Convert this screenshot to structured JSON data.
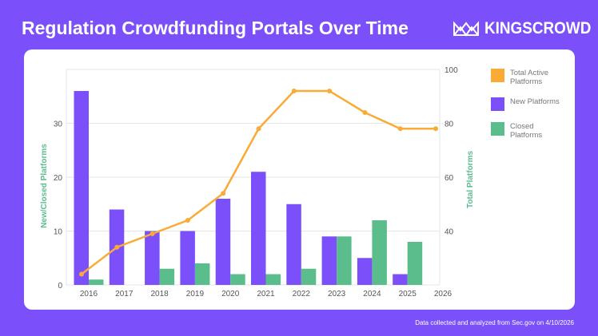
{
  "title": "Regulation Crowdfunding Portals Over Time",
  "logo": {
    "text": "KINGSCROWD",
    "icon": "crown-outline-icon"
  },
  "footer": "Data collected and analyzed from Sec.gov on 4/10/2026",
  "colors": {
    "background": "#7b4ffa",
    "new": "#7b4ffa",
    "closed": "#5bbd8c",
    "total": "#f9ab36",
    "axis_title": "#5bbd8c"
  },
  "chart_data": {
    "type": "bar+line",
    "categories": [
      "2016",
      "2017",
      "2018",
      "2019",
      "2020",
      "2021",
      "2022",
      "2023",
      "2024",
      "2025",
      "2026"
    ],
    "ylabel_left": "New/Closed Platforms",
    "ylabel_right": "Total Platforms",
    "ylim_left": [
      0,
      40
    ],
    "yticks_left": [
      "0",
      "10",
      "20",
      "30"
    ],
    "ylim_right": [
      20,
      100
    ],
    "yticks_right": [
      "40",
      "60",
      "80",
      "100"
    ],
    "grid": true,
    "legend_position": "right",
    "series": [
      {
        "name": "Total Active Platforms",
        "type": "line",
        "axis": "right",
        "values": [
          24,
          34,
          39,
          44,
          54,
          78,
          92,
          92,
          84,
          78,
          78
        ]
      },
      {
        "name": "New Platforms",
        "type": "bar",
        "axis": "left",
        "values": [
          36,
          14,
          10,
          10,
          16,
          21,
          15,
          9,
          5,
          2,
          null
        ]
      },
      {
        "name": "Closed Platforms",
        "type": "bar",
        "axis": "left",
        "values": [
          1,
          0,
          3,
          4,
          2,
          2,
          3,
          9,
          12,
          8,
          null
        ]
      }
    ]
  }
}
